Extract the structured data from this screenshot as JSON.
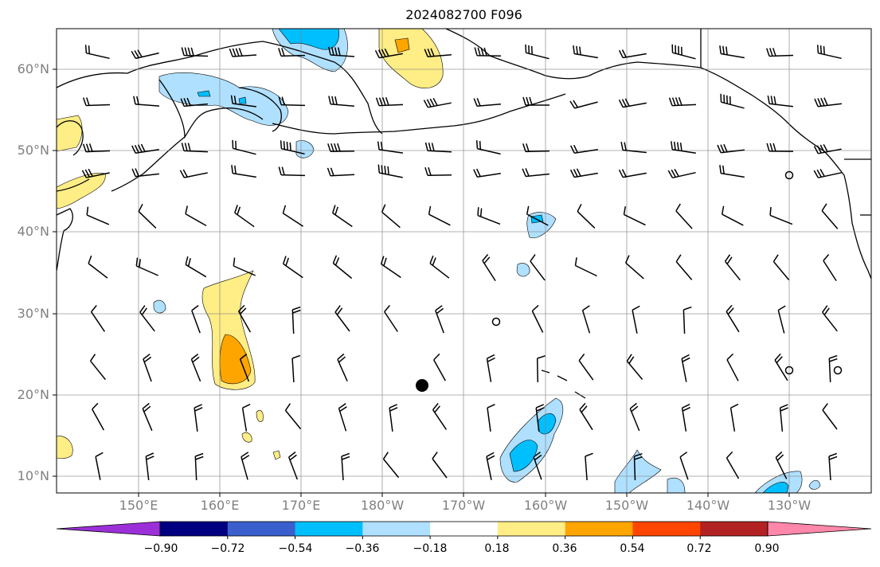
{
  "title": "2024082700 F096",
  "lat_labels": [
    "60°N",
    "50°N",
    "40°N",
    "30°N",
    "20°N",
    "10°N"
  ],
  "lon_labels": [
    "150°E",
    "160°E",
    "170°E",
    "180°W",
    "170°W",
    "160°W",
    "150°W",
    "140°W",
    "130°W"
  ],
  "colorbar": {
    "colors": [
      "#9b30d9",
      "#000080",
      "#3a5fcd",
      "#00bfff",
      "#b0e0ff",
      "#ffffff",
      "#ffed85",
      "#ffa500",
      "#ff4500",
      "#b22222",
      "#ff88aa"
    ],
    "tick_labels": [
      "−0.90",
      "−0.72",
      "−0.54",
      "−0.36",
      "−0.18",
      "0.18",
      "0.36",
      "0.54",
      "0.72",
      "0.90"
    ]
  },
  "colors": {
    "coast": "#000000",
    "grid": "#808080",
    "land_fill": "#ffffff"
  }
}
